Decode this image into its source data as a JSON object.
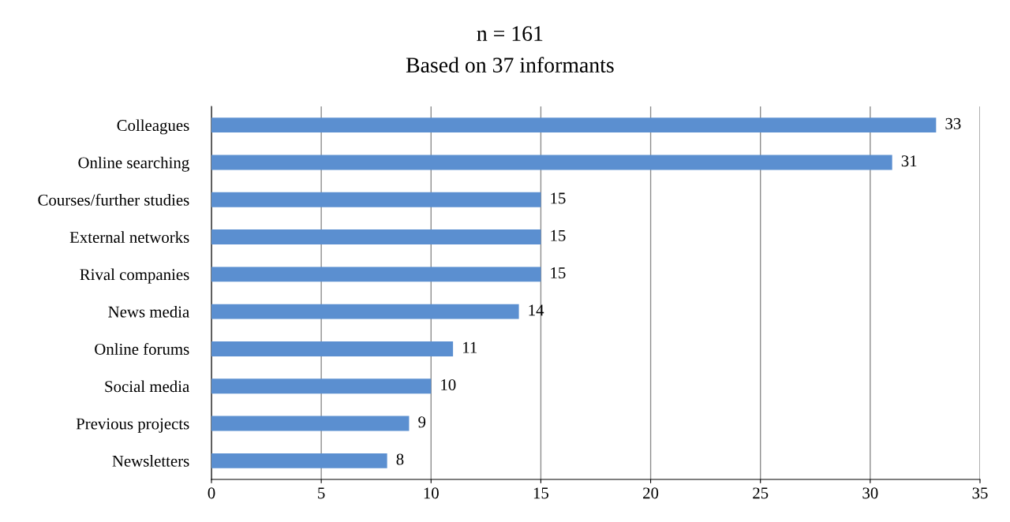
{
  "chart_data": {
    "type": "bar",
    "orientation": "horizontal",
    "title": "n = 161",
    "subtitle": "Based on 37 informants",
    "categories": [
      "Colleagues",
      "Online searching",
      "Courses/further studies",
      "External networks",
      "Rival companies",
      "News media",
      "Online forums",
      "Social media",
      "Previous projects",
      "Newsletters"
    ],
    "values": [
      33,
      31,
      15,
      15,
      15,
      14,
      11,
      10,
      9,
      8
    ],
    "color": "#5b8fd0",
    "xlim": [
      0,
      35
    ],
    "xticks": [
      0,
      5,
      10,
      15,
      20,
      25,
      30,
      35
    ],
    "grid": "x",
    "data_labels": true,
    "legend": false
  }
}
